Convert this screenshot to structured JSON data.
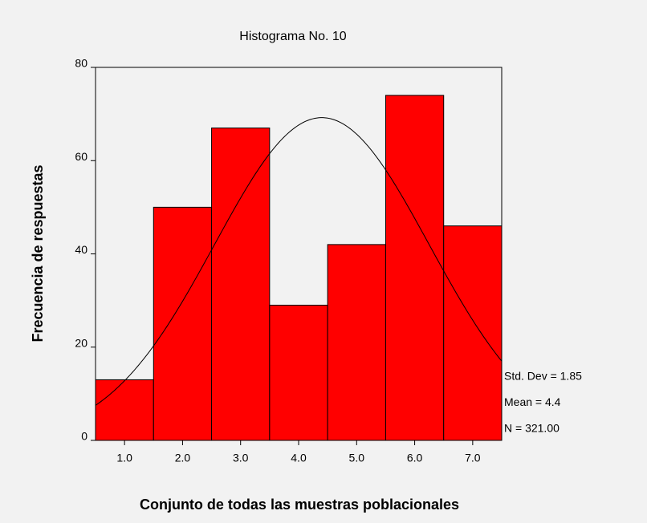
{
  "chart_data": {
    "type": "histogram",
    "title": "Histograma No. 10",
    "xlabel": "Conjunto de todas las muestras poblacionales",
    "ylabel": "Frecuencia de respuestas",
    "bins": [
      0.5,
      1.5,
      2.5,
      3.5,
      4.5,
      5.5,
      6.5,
      7.5
    ],
    "values": [
      13,
      50,
      67,
      29,
      42,
      74,
      46
    ],
    "color": "#ff0000",
    "xlim": [
      0.5,
      7.5
    ],
    "xticks": [
      {
        "value": 1,
        "label": "1.0"
      },
      {
        "value": 2,
        "label": "2.0"
      },
      {
        "value": 3,
        "label": "3.0"
      },
      {
        "value": 4,
        "label": "4.0"
      },
      {
        "value": 5,
        "label": "5.0"
      },
      {
        "value": 6,
        "label": "6.0"
      },
      {
        "value": 7,
        "label": "7.0"
      }
    ],
    "ylim": [
      0,
      80
    ],
    "yticks": [
      0,
      20,
      40,
      60,
      80
    ],
    "stats": {
      "sd": {
        "value": 1.85,
        "label": "Std. Dev = 1.85"
      },
      "mean": {
        "value": 4.4,
        "label": "Mean = 4.4"
      },
      "n": {
        "value": 321,
        "label": "N = 321.00"
      }
    }
  }
}
